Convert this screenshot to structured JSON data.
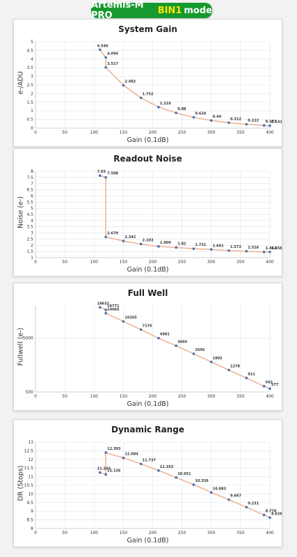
{
  "banner": {
    "prefix": "Artemis-M PRO",
    "highlight": "BIN1",
    "suffix": "mode"
  },
  "colors": {
    "banner_bg": "#169a2e",
    "banner_highlight": "#ffe600",
    "line": "#f0b496",
    "point": "#4a6fb5",
    "grid": "#dde3ec"
  },
  "chart_data": [
    {
      "type": "line",
      "title": "System Gain",
      "xlabel": "Gain (0.1dB)",
      "ylabel": "e-/ADU",
      "xlim": [
        0,
        400
      ],
      "ylim": [
        0,
        5
      ],
      "xticks": [
        "0",
        "50",
        "100",
        "150",
        "200",
        "250",
        "300",
        "350",
        "400"
      ],
      "yticks": [
        "0",
        "0.5",
        "1",
        "1.5",
        "2",
        "2.5",
        "3",
        "3.5",
        "4",
        "4.5",
        "5"
      ],
      "grid": true,
      "x": [
        110,
        120,
        120,
        150,
        180,
        210,
        240,
        270,
        300,
        330,
        360,
        390,
        400
      ],
      "y": [
        4.546,
        4.094,
        3.517,
        2.482,
        1.752,
        1.216,
        0.88,
        0.624,
        0.44,
        0.312,
        0.222,
        0.157,
        0.141
      ],
      "labels": [
        "4.546",
        "4.094",
        "3.517",
        "2.482",
        "1.752",
        "1.216",
        "0.88",
        "0.624",
        "0.44",
        "0.312",
        "0.222",
        "0.157",
        "0.141"
      ]
    },
    {
      "type": "line",
      "title": "Readout Noise",
      "xlabel": "Gain (0.1dB)",
      "ylabel": "Noise (e-)",
      "xlim": [
        0,
        400
      ],
      "ylim": [
        1,
        8
      ],
      "xticks": [
        "0",
        "50",
        "100",
        "150",
        "200",
        "250",
        "300",
        "350",
        "400"
      ],
      "yticks": [
        "1",
        "1.5",
        "2",
        "2.5",
        "3",
        "3.5",
        "4",
        "4.5",
        "5",
        "5.5",
        "6",
        "6.5",
        "7",
        "7.5",
        "8"
      ],
      "grid": true,
      "x": [
        110,
        120,
        120,
        150,
        180,
        210,
        240,
        270,
        300,
        330,
        360,
        390,
        400
      ],
      "y": [
        7.65,
        7.508,
        2.679,
        2.342,
        2.103,
        1.904,
        1.82,
        1.721,
        1.661,
        1.572,
        1.516,
        1.462,
        1.458
      ],
      "labels": [
        "7.65",
        "7.508",
        "2.679",
        "2.342",
        "2.103",
        "1.904",
        "1.82",
        "1.721",
        "1.661",
        "1.572",
        "1.516",
        "1.462",
        "1.458"
      ]
    },
    {
      "type": "line",
      "title": "Full Well",
      "xlabel": "Gain (0.1dB)",
      "ylabel": "Fullwell (e-)",
      "yscale": "log",
      "xlim": [
        0,
        400
      ],
      "ylim": [
        500,
        20000
      ],
      "xticks": [
        "0",
        "50",
        "100",
        "150",
        "200",
        "250",
        "300",
        "350",
        "400"
      ],
      "yticks": [
        "500",
        "5000"
      ],
      "grid": true,
      "x": [
        110,
        120,
        120,
        150,
        180,
        210,
        240,
        270,
        300,
        330,
        360,
        390,
        400
      ],
      "y": [
        18632,
        16771,
        14465,
        10165,
        7176,
        4981,
        3604,
        2556,
        1802,
        1278,
        911,
        642,
        577
      ],
      "labels": [
        "18632",
        "16771",
        "14465",
        "10165",
        "7176",
        "4981",
        "3604",
        "2556",
        "1802",
        "1278",
        "911",
        "642",
        "577"
      ]
    },
    {
      "type": "line",
      "title": "Dynamic Range",
      "xlabel": "Gain (0.1dB)",
      "ylabel": "DR (Stops)",
      "xlim": [
        0,
        400
      ],
      "ylim": [
        8,
        13
      ],
      "xticks": [
        "0",
        "50",
        "100",
        "150",
        "200",
        "250",
        "300",
        "350",
        "400"
      ],
      "yticks": [
        "8",
        "8.5",
        "9",
        "9.5",
        "10",
        "10.5",
        "11",
        "11.5",
        "12",
        "12.5",
        "13"
      ],
      "grid": true,
      "x": [
        110,
        120,
        120,
        150,
        180,
        210,
        240,
        270,
        300,
        330,
        360,
        390,
        400
      ],
      "y": [
        11.243,
        11.126,
        12.393,
        12.084,
        11.737,
        11.353,
        10.951,
        10.536,
        10.083,
        9.667,
        9.231,
        8.778,
        8.628
      ],
      "labels": [
        "11.243",
        "11.126",
        "12.393",
        "12.084",
        "11.737",
        "11.353",
        "10.951",
        "10.536",
        "10.083",
        "9.667",
        "9.231",
        "8.778",
        "8.628"
      ]
    }
  ]
}
